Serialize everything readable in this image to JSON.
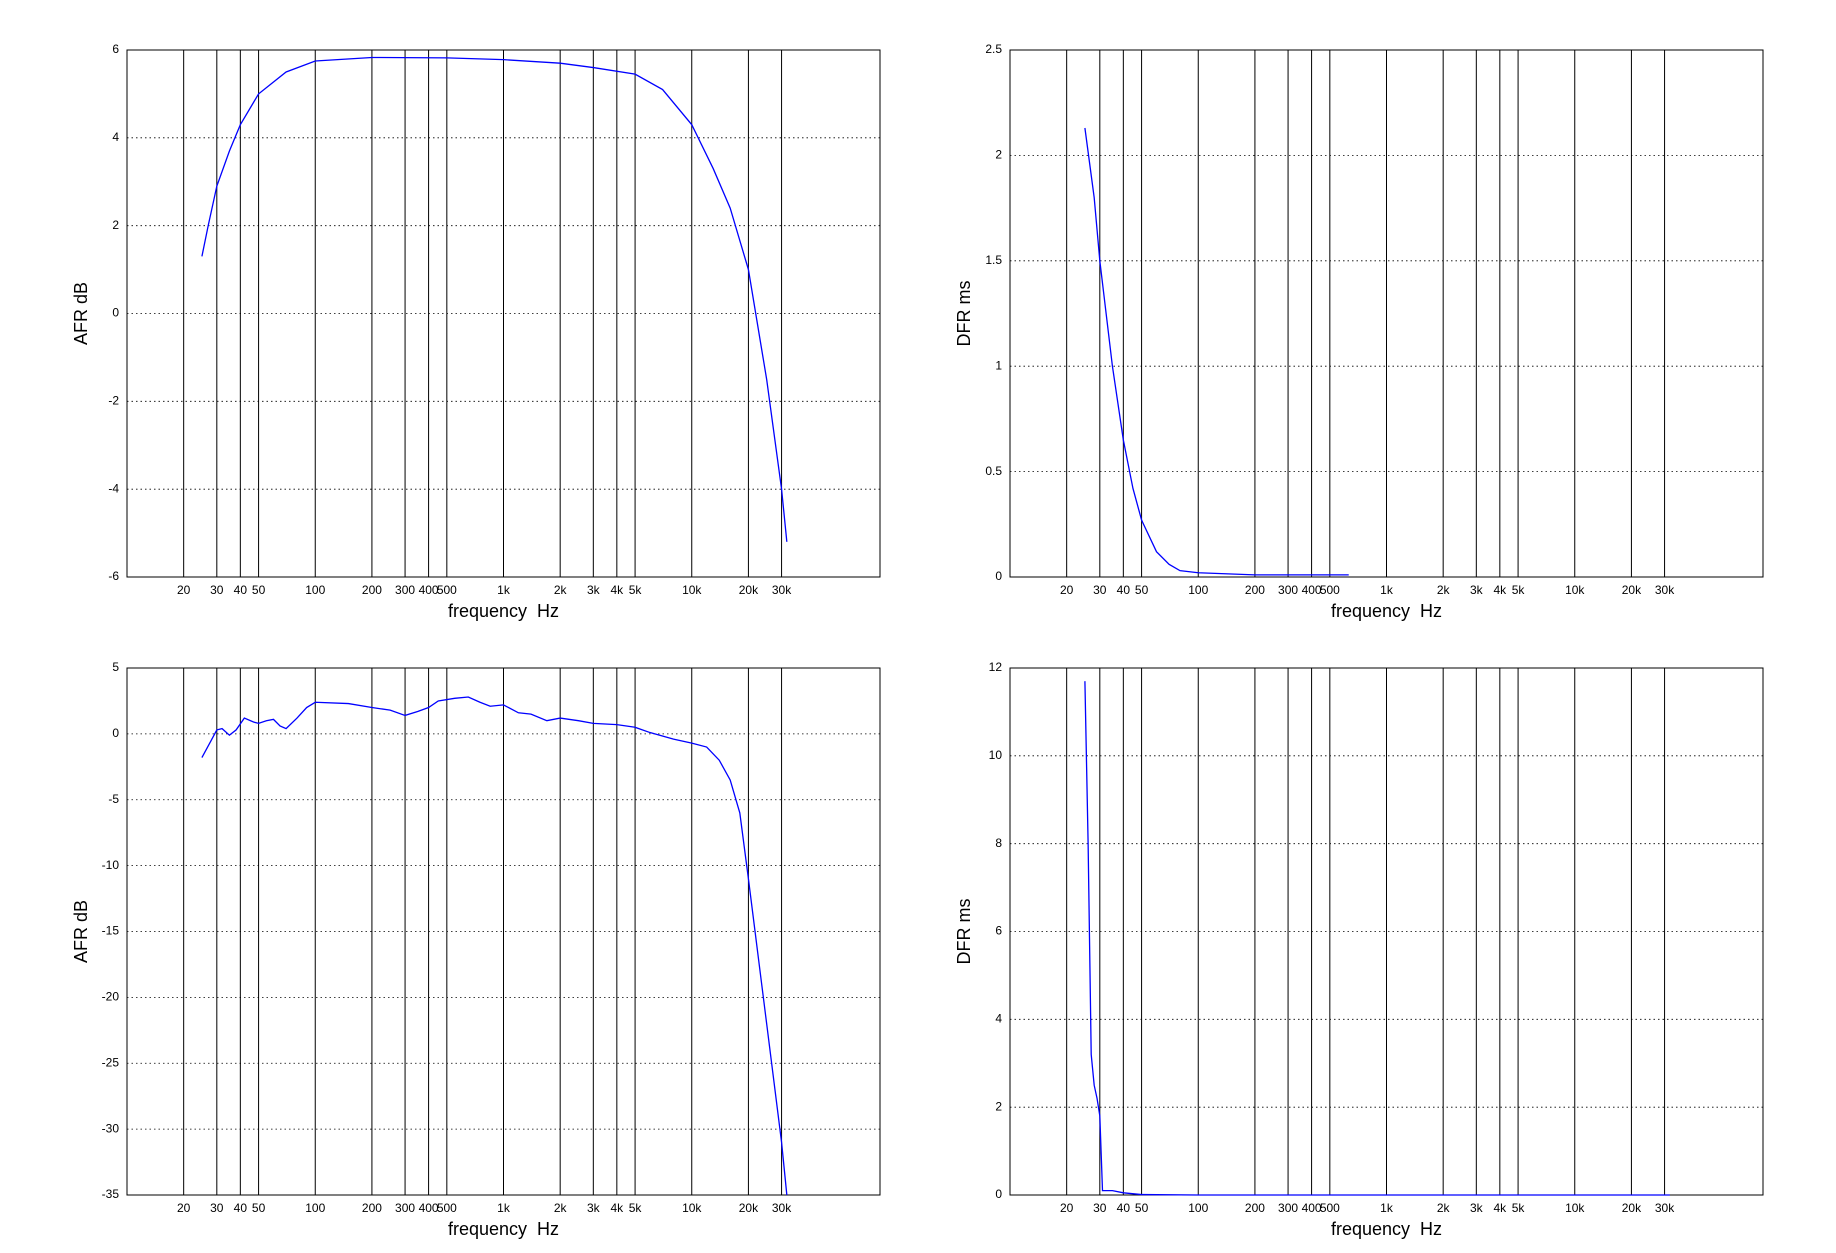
{
  "chart_data": [
    {
      "type": "line",
      "ylabel": "AFR dB",
      "xlabel": "frequency  Hz",
      "xscale": "log",
      "grid": true,
      "color": "#0000ff",
      "xlim": [
        10,
        100000
      ],
      "ylim": [
        -6,
        6
      ],
      "yticks": [
        -6,
        -4,
        -2,
        0,
        2,
        4,
        6
      ],
      "xticks": [
        20,
        30,
        40,
        50,
        100,
        200,
        300,
        400,
        500,
        {
          "value": 1000,
          "label": "1k"
        },
        {
          "value": 2000,
          "label": "2k"
        },
        {
          "value": 3000,
          "label": "3k"
        },
        {
          "value": 4000,
          "label": "4k"
        },
        {
          "value": 5000,
          "label": "5k"
        },
        {
          "value": 10000,
          "label": "10k"
        },
        {
          "value": 20000,
          "label": "20k"
        },
        {
          "value": 30000,
          "label": "30k"
        }
      ],
      "x": [
        25,
        27,
        30,
        35,
        40,
        50,
        70,
        100,
        200,
        500,
        1000,
        2000,
        3000,
        5000,
        7000,
        10000,
        13000,
        16000,
        20000,
        25000,
        30000,
        32000
      ],
      "values": [
        1.3,
        2,
        2.9,
        3.7,
        4.3,
        5.0,
        5.5,
        5.75,
        5.83,
        5.82,
        5.78,
        5.7,
        5.6,
        5.45,
        5.1,
        4.3,
        3.3,
        2.4,
        1.0,
        -1.5,
        -4,
        -5.2
      ]
    },
    {
      "type": "line",
      "ylabel": "DFR ms",
      "xlabel": "frequency  Hz",
      "xscale": "log",
      "grid": true,
      "color": "#0000ff",
      "xlim": [
        10,
        100000
      ],
      "ylim": [
        0,
        2.5
      ],
      "yticks": [
        0,
        0.5,
        1,
        1.5,
        2,
        2.5
      ],
      "xticks": [
        20,
        30,
        40,
        50,
        100,
        200,
        300,
        400,
        500,
        {
          "value": 1000,
          "label": "1k"
        },
        {
          "value": 2000,
          "label": "2k"
        },
        {
          "value": 3000,
          "label": "3k"
        },
        {
          "value": 4000,
          "label": "4k"
        },
        {
          "value": 5000,
          "label": "5k"
        },
        {
          "value": 10000,
          "label": "10k"
        },
        {
          "value": 20000,
          "label": "20k"
        },
        {
          "value": 30000,
          "label": "30k"
        }
      ],
      "x": [
        25,
        28,
        30,
        35,
        40,
        45,
        50,
        60,
        70,
        80,
        100,
        200,
        630
      ],
      "values": [
        2.13,
        1.8,
        1.5,
        1.0,
        0.65,
        0.42,
        0.27,
        0.12,
        0.06,
        0.03,
        0.02,
        0.01,
        0.01
      ]
    },
    {
      "type": "line",
      "ylabel": "AFR dB",
      "xlabel": "frequency  Hz",
      "xscale": "log",
      "grid": true,
      "color": "#0000ff",
      "xlim": [
        10,
        100000
      ],
      "ylim": [
        -35,
        5
      ],
      "yticks": [
        -35,
        -30,
        -25,
        -20,
        -15,
        -10,
        -5,
        0,
        5
      ],
      "xticks": [
        20,
        30,
        40,
        50,
        100,
        200,
        300,
        400,
        500,
        {
          "value": 1000,
          "label": "1k"
        },
        {
          "value": 2000,
          "label": "2k"
        },
        {
          "value": 3000,
          "label": "3k"
        },
        {
          "value": 4000,
          "label": "4k"
        },
        {
          "value": 5000,
          "label": "5k"
        },
        {
          "value": 10000,
          "label": "10k"
        },
        {
          "value": 20000,
          "label": "20k"
        },
        {
          "value": 30000,
          "label": "30k"
        }
      ],
      "x": [
        25,
        28,
        30,
        32,
        35,
        38,
        42,
        47,
        50,
        55,
        60,
        65,
        70,
        80,
        90,
        100,
        150,
        200,
        250,
        300,
        350,
        400,
        450,
        550,
        650,
        750,
        850,
        1000,
        1200,
        1400,
        1700,
        2000,
        2500,
        3000,
        4000,
        5000,
        6000,
        8000,
        10000,
        12000,
        14000,
        16000,
        18000,
        20000,
        25000,
        30000,
        32000
      ],
      "values": [
        -1.8,
        -0.5,
        0.3,
        0.4,
        -0.1,
        0.3,
        1.2,
        0.9,
        0.8,
        1.0,
        1.1,
        0.6,
        0.4,
        1.2,
        2.0,
        2.4,
        2.3,
        2.0,
        1.8,
        1.4,
        1.7,
        2.0,
        2.5,
        2.7,
        2.8,
        2.4,
        2.1,
        2.2,
        1.6,
        1.5,
        1.0,
        1.2,
        1.0,
        0.8,
        0.7,
        0.5,
        0.1,
        -0.4,
        -0.7,
        -1.0,
        -2.0,
        -3.5,
        -6,
        -11,
        -22,
        -31,
        -35
      ]
    },
    {
      "type": "line",
      "ylabel": "DFR ms",
      "xlabel": "frequency  Hz",
      "xscale": "log",
      "grid": true,
      "color": "#0000ff",
      "xlim": [
        10,
        100000
      ],
      "ylim": [
        0,
        12
      ],
      "yticks": [
        0,
        2,
        4,
        6,
        8,
        10,
        12
      ],
      "xticks": [
        20,
        30,
        40,
        50,
        100,
        200,
        300,
        400,
        500,
        {
          "value": 1000,
          "label": "1k"
        },
        {
          "value": 2000,
          "label": "2k"
        },
        {
          "value": 3000,
          "label": "3k"
        },
        {
          "value": 4000,
          "label": "4k"
        },
        {
          "value": 5000,
          "label": "5k"
        },
        {
          "value": 10000,
          "label": "10k"
        },
        {
          "value": 20000,
          "label": "20k"
        },
        {
          "value": 30000,
          "label": "30k"
        }
      ],
      "x": [
        25,
        26,
        27,
        28,
        29,
        30,
        31,
        35,
        40,
        50,
        100,
        1000,
        10000,
        32000
      ],
      "values": [
        11.7,
        8,
        3.2,
        2.5,
        2.2,
        1.8,
        0.1,
        0.1,
        0.05,
        0.01,
        0,
        0,
        0,
        0
      ]
    }
  ]
}
